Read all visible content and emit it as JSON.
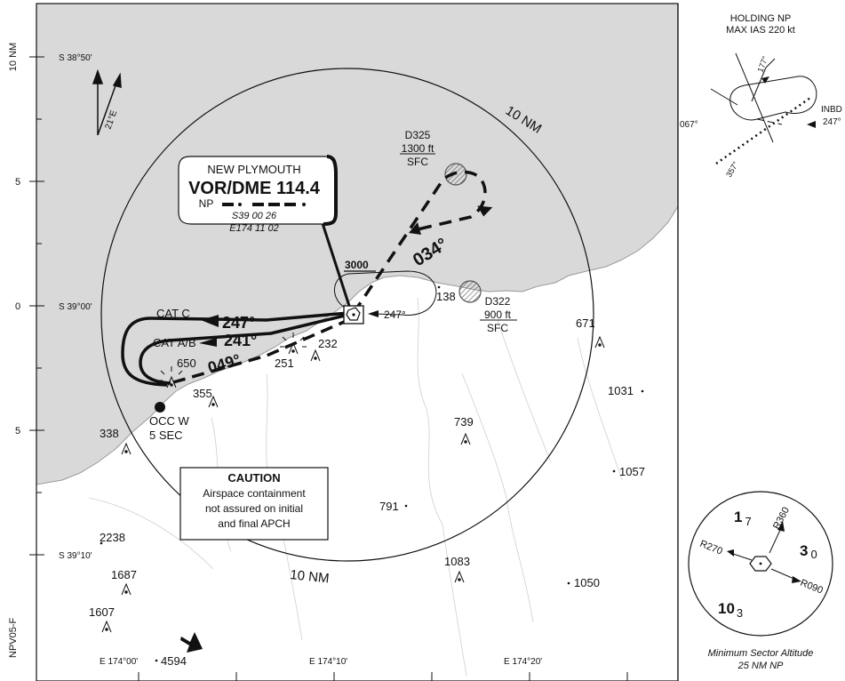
{
  "chart_id": "NPV05-F",
  "vor": {
    "name": "NEW PLYMOUTH",
    "type_freq": "VOR/DME 114.4",
    "ident": "NP",
    "lat": "S39 00 26",
    "lon": "E174 11 02"
  },
  "ranges": {
    "north": "10 NM",
    "south": "10 NM"
  },
  "magvar": "21°E",
  "grid": {
    "lat_labels": [
      "S 38°50'",
      "S 39°00'",
      "S 39°10'"
    ],
    "lon_labels": [
      "E 174°00'",
      "E 174°10'",
      "E 174°20'"
    ],
    "scale_labels": [
      "10 NM",
      "5",
      "0",
      "5"
    ]
  },
  "procedure": {
    "altitude": "3000",
    "outbound_track": "034°",
    "inbound_holding_track": "247°",
    "cat_c": {
      "label": "CAT C",
      "track": "247°"
    },
    "cat_ab": {
      "label": "CAT A/B",
      "track": "241°"
    },
    "return_track": "049°"
  },
  "restricted_areas": [
    {
      "id": "D325",
      "upper": "1300 ft",
      "lower": "SFC"
    },
    {
      "id": "D322",
      "upper": "900 ft",
      "lower": "SFC"
    }
  ],
  "light": {
    "name": "OCC W",
    "period": "5 SEC"
  },
  "elevations": [
    "650",
    "355",
    "251",
    "232",
    "138",
    "671",
    "1031",
    "739",
    "1057",
    "791",
    "338",
    "2238",
    "1687",
    "1607",
    "1083",
    "1050",
    "4594"
  ],
  "caution": {
    "title": "CAUTION",
    "lines": [
      "Airspace containment",
      "not assured on initial",
      "and final APCH"
    ]
  },
  "holding": {
    "title": "HOLDING NP",
    "speed": "MAX IAS 220 kt",
    "r177": "177°",
    "r067": "067°",
    "r357": "357°",
    "inbd_label": "INBD",
    "inbd_track": "247°"
  },
  "msa": {
    "radial_360": "R360",
    "radial_270": "R270",
    "radial_090": "R090",
    "alt_nw": "1",
    "alt_nw_sub": "7",
    "alt_e": "3",
    "alt_e_sub": "0",
    "alt_s": "10",
    "alt_s_sub": "3",
    "caption_line1": "Minimum Sector Altitude",
    "caption_line2": "25 NM NP"
  }
}
